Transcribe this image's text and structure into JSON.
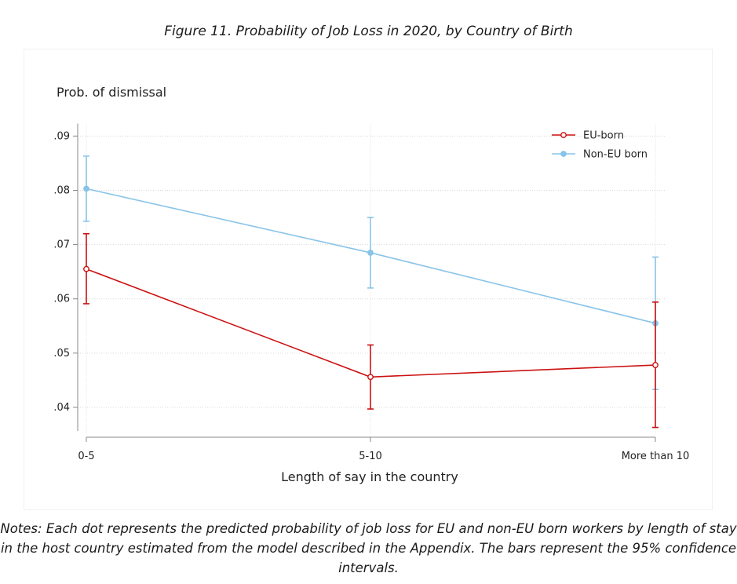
{
  "figure_title": "Figure 11. Probability of Job Loss in 2020, by Country of Birth",
  "notes": "Notes: Each dot represents the predicted probability of job loss for EU and non-EU born workers by length of stay in the host country estimated from the model described in the Appendix. The bars represent the 95% confidence intervals.",
  "chart_data": {
    "type": "line",
    "title": "Figure 11. Probability of Job Loss in 2020, by Country of Birth",
    "xlabel": "Length of say in the country",
    "ylabel": "Prob. of dismissal",
    "categories": [
      "0-5",
      "5-10",
      "More than 10"
    ],
    "y_ticks": [
      ".04",
      ".05",
      ".06",
      ".07",
      ".08",
      ".09"
    ],
    "y_tick_values": [
      0.04,
      0.05,
      0.06,
      0.07,
      0.08,
      0.09
    ],
    "ylim": [
      0.0345,
      0.092
    ],
    "grid": true,
    "legend_position": "top-right",
    "series": [
      {
        "name": "EU-born",
        "color": "#cc1111",
        "values": [
          0.0655,
          0.0456,
          0.0478
        ],
        "ci_low": [
          0.0591,
          0.0397,
          0.0363
        ],
        "ci_high": [
          0.072,
          0.0515,
          0.0594
        ]
      },
      {
        "name": "Non-EU born",
        "color": "#89c4e8",
        "values": [
          0.0803,
          0.0685,
          0.0555
        ],
        "ci_low": [
          0.0743,
          0.062,
          0.0433
        ],
        "ci_high": [
          0.0863,
          0.075,
          0.0677
        ]
      }
    ]
  }
}
